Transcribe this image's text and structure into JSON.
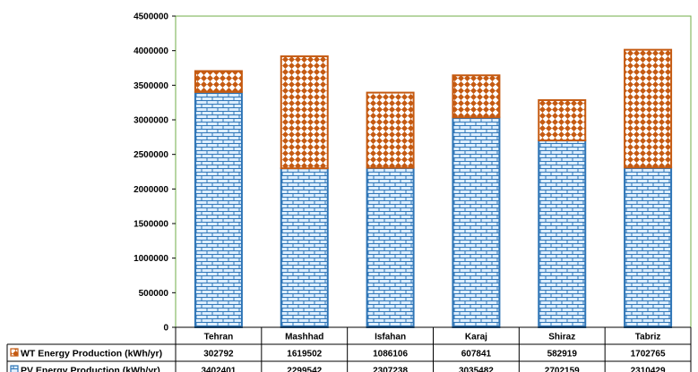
{
  "chart_data": {
    "type": "bar",
    "stacked": true,
    "categories": [
      "Tehran",
      "Mashhad",
      "Isfahan",
      "Karaj",
      "Shiraz",
      "Tabriz"
    ],
    "series": [
      {
        "name": "PV Energy Production (kWh/yr)",
        "values": [
          3402401,
          2299542,
          2307238,
          3035482,
          2702159,
          2310429
        ],
        "color": "#2e75b6",
        "fill": "#ddeeff"
      },
      {
        "name": "WT Energy Production (kWh/yr)",
        "values": [
          302792,
          1619502,
          1086106,
          607841,
          582919,
          1702765
        ],
        "color": "#c55a11",
        "fill": "#ffffff"
      }
    ],
    "ylim": [
      0,
      4500000
    ],
    "yticks": [
      "0",
      "500000",
      "1000000",
      "1500000",
      "2000000",
      "2500000",
      "3000000",
      "3500000",
      "4000000",
      "4500000"
    ],
    "data_table": [
      {
        "label": "WT Energy Production (kWh/yr)",
        "cells": [
          "302792",
          "1619502",
          "1086106",
          "607841",
          "582919",
          "1702765"
        ]
      },
      {
        "label": "PV Energy Production (kWh/yr)",
        "cells": [
          "3402401",
          "2299542",
          "2307238",
          "3035482",
          "2702159",
          "2310429"
        ]
      }
    ],
    "grid": false,
    "legend": "data-table"
  }
}
